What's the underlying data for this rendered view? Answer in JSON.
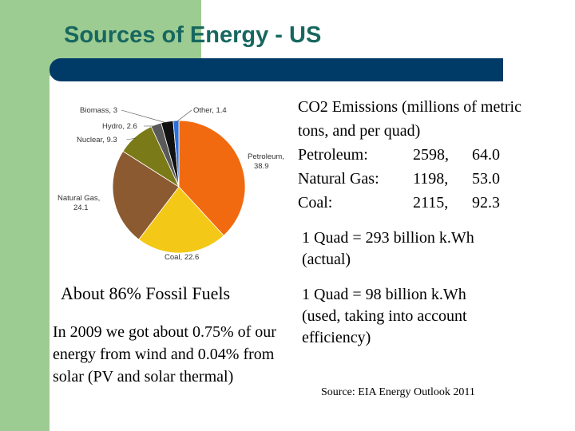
{
  "slide": {
    "title": "Sources of Energy - US",
    "colors": {
      "title": "#17675f",
      "title_bar": "#003a66",
      "accent_band": "#9dcc93"
    }
  },
  "chart_data": {
    "type": "pie",
    "title": "",
    "slices": [
      {
        "name": "Petroleum",
        "label": "Petroleum, 38.9",
        "value": 38.9,
        "color": "#f26a10"
      },
      {
        "name": "Coal",
        "label": "Coal, 22.6",
        "value": 22.6,
        "color": "#f4c816"
      },
      {
        "name": "Natural Gas",
        "label": "Natural Gas, 24.1",
        "value": 24.1,
        "color": "#8b5a30"
      },
      {
        "name": "Nuclear",
        "label": "Nuclear, 9.3",
        "value": 9.3,
        "color": "#7a7a18"
      },
      {
        "name": "Hydro",
        "label": "Hydro, 2.6",
        "value": 2.6,
        "color": "#5a5a5a"
      },
      {
        "name": "Biomass",
        "label": "Biomass, 3",
        "value": 3.0,
        "color": "#111111"
      },
      {
        "name": "Other",
        "label": "Other, 1.4",
        "value": 1.4,
        "color": "#2f6fd8"
      }
    ]
  },
  "co2": {
    "heading": "CO2 Emissions (millions of metric tons, and per quad)",
    "heading_line1": "CO2 Emissions (millions of metric",
    "heading_line2": "tons, and per quad)",
    "rows": [
      {
        "fuel": "Petroleum:",
        "tons": "2598,",
        "per_quad": "64.0"
      },
      {
        "fuel": "Natural Gas:",
        "tons": "1198,",
        "per_quad": "53.0"
      },
      {
        "fuel": "Coal:",
        "tons": "2115,",
        "per_quad": "92.3"
      }
    ]
  },
  "quad_actual": {
    "line1": "1 Quad = 293 billion k.Wh",
    "line2": "(actual)"
  },
  "quad_used": {
    "line1": "1 Quad = 98 billion k.Wh",
    "line2": "(used, taking into account",
    "line3": "efficiency)"
  },
  "fossil_fuels": "About 86% Fossil Fuels",
  "wind_solar": "In 2009 we got about 0.75% of our energy from wind and 0.04% from solar (PV and solar thermal)",
  "source": "Source: EIA Energy Outlook 2011"
}
